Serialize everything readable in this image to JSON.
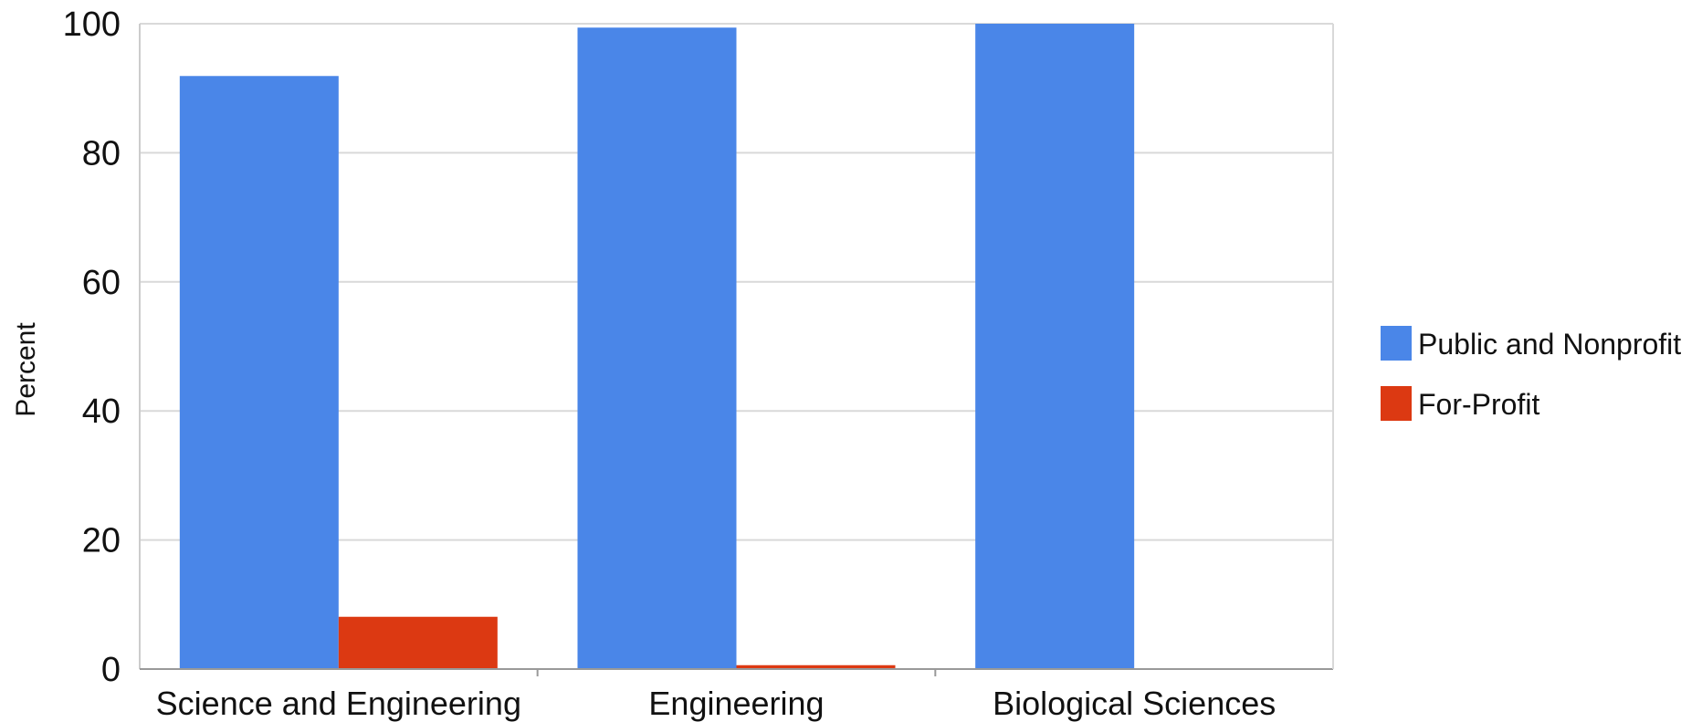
{
  "chart_data": {
    "type": "bar",
    "title": "",
    "xlabel": "",
    "ylabel": "Percent",
    "ylim": [
      0,
      100
    ],
    "yticks": [
      0,
      20,
      40,
      60,
      80,
      100
    ],
    "grid": true,
    "legend_position": "right",
    "categories": [
      "Science and Engineering",
      "Engineering",
      "Biological Sciences"
    ],
    "series": [
      {
        "name": "Public and Nonprofit",
        "color": "#4a86e8",
        "values": [
          91.9,
          99.4,
          100
        ]
      },
      {
        "name": "For-Profit",
        "color": "#dc3912",
        "values": [
          8.1,
          0.6,
          0
        ]
      }
    ]
  }
}
